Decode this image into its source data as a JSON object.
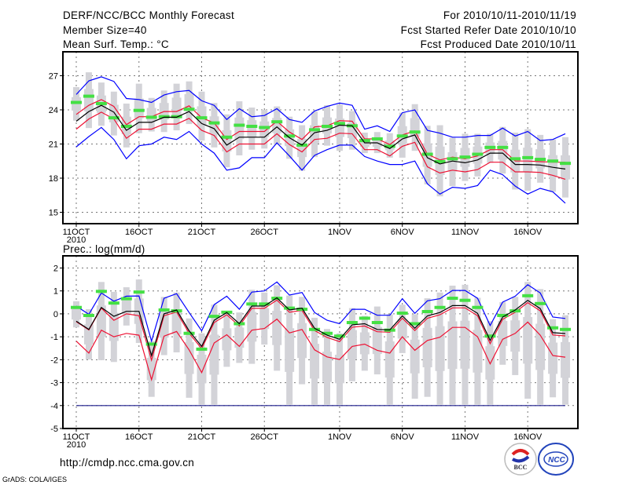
{
  "header": {
    "title": "DERF/NCC/BCC Monthly Forecast",
    "member_size": "Member Size=40",
    "variable": "Mean Surf. Temp.: °C",
    "period": "For 2010/10/11-2010/11/19",
    "start_date": "Fcst Started Refer Date 2010/10/10",
    "produced_date": "Fcst Produced Date 2010/10/11"
  },
  "footer": {
    "url": "http://cmdp.ncc.cma.gov.cn",
    "credit": "GrADS: COLA/IGES",
    "logo_bcc": "BCC",
    "logo_ncc": "NCC"
  },
  "colors": {
    "max_min": "#0000ff",
    "spread": "#ee1133",
    "mean": "#000000",
    "green": "#44e044",
    "gray": "#d3d3d8",
    "minline": "#1a1a8a"
  },
  "chart_data": [
    {
      "type": "line",
      "title": "Mean Surf. Temp.: °C",
      "ylabel": "°C",
      "ylim": [
        14,
        29.1
      ],
      "yticks": [
        15,
        18,
        21,
        24,
        27
      ],
      "xticks": [
        {
          "day": 0,
          "label": "11OCT",
          "sub": "2010"
        },
        {
          "day": 5,
          "label": "16OCT"
        },
        {
          "day": 10,
          "label": "21OCT"
        },
        {
          "day": 15,
          "label": "26OCT"
        },
        {
          "day": 21,
          "label": "1NOV"
        },
        {
          "day": 26,
          "label": "6NOV"
        },
        {
          "day": 31,
          "label": "11NOV"
        },
        {
          "day": 36,
          "label": "16NOV"
        }
      ],
      "grid": true,
      "n_days": 40,
      "series": [
        {
          "name": "range_hi",
          "kind": "bar_hi",
          "values": [
            26.0,
            27.3,
            26.4,
            25.6,
            24.55,
            26.3,
            25.05,
            25.7,
            26.3,
            26.5,
            25.6,
            24.6,
            23.6,
            24.75,
            24.2,
            24.0,
            24.3,
            23.4,
            22.65,
            23.85,
            24.4,
            24.45,
            23.9,
            22.0,
            22.05,
            21.95,
            23.75,
            24.5,
            22.6,
            22.65,
            21.55,
            21.9,
            21.9,
            21.9,
            22.5,
            22.0,
            22.3,
            21.8,
            21.4,
            21.6
          ]
        },
        {
          "name": "range_lo",
          "kind": "bar_lo",
          "values": [
            23.05,
            22.4,
            22.6,
            21.75,
            20.7,
            21.95,
            22.1,
            22.05,
            22.2,
            22.75,
            21.3,
            20.7,
            18.95,
            20.0,
            20.5,
            20.6,
            20.95,
            19.7,
            18.65,
            19.85,
            20.85,
            20.4,
            20.5,
            20.2,
            20.2,
            19.8,
            19.8,
            20.4,
            17.45,
            16.4,
            17.3,
            17.75,
            18.15,
            19.35,
            18.4,
            17.0,
            16.9,
            17.6,
            16.8,
            16.3
          ]
        },
        {
          "name": "max",
          "kind": "blue",
          "values": [
            25.35,
            26.55,
            26.9,
            26.5,
            25.0,
            24.9,
            24.65,
            25.3,
            25.6,
            25.7,
            24.8,
            24.4,
            23.15,
            24.1,
            23.4,
            23.5,
            24.1,
            23.15,
            22.9,
            23.9,
            24.3,
            24.6,
            24.4,
            22.3,
            22.6,
            22.1,
            23.75,
            24.0,
            22.2,
            21.95,
            21.6,
            21.6,
            21.75,
            21.75,
            22.4,
            21.7,
            22.1,
            21.3,
            21.4,
            21.9
          ]
        },
        {
          "name": "min",
          "kind": "blue",
          "values": [
            20.75,
            21.65,
            22.45,
            21.4,
            19.7,
            20.85,
            21.0,
            21.6,
            21.4,
            22.1,
            21.0,
            20.2,
            18.7,
            18.9,
            19.8,
            19.8,
            21.1,
            19.95,
            18.7,
            20.0,
            20.5,
            20.9,
            20.9,
            19.9,
            19.5,
            19.2,
            19.2,
            19.5,
            17.5,
            16.6,
            17.2,
            17.1,
            17.35,
            18.7,
            18.3,
            17.3,
            16.6,
            17.1,
            16.8,
            15.8
          ]
        },
        {
          "name": "upper",
          "kind": "red",
          "values": [
            23.6,
            24.4,
            24.9,
            24.3,
            22.7,
            23.4,
            23.4,
            23.85,
            23.85,
            24.35,
            23.3,
            22.85,
            21.4,
            22.1,
            22.1,
            22.1,
            23.0,
            22.05,
            21.4,
            22.5,
            22.6,
            23.05,
            23.0,
            21.45,
            21.45,
            20.95,
            21.8,
            22.15,
            20.1,
            19.6,
            19.85,
            19.7,
            19.95,
            20.5,
            20.5,
            19.5,
            19.5,
            19.45,
            19.4,
            19.4
          ]
        },
        {
          "name": "lower",
          "kind": "red",
          "values": [
            22.3,
            23.2,
            23.8,
            23.2,
            21.5,
            22.3,
            22.3,
            22.75,
            22.75,
            23.25,
            22.2,
            21.75,
            20.3,
            21.0,
            21.0,
            21.0,
            21.9,
            20.95,
            20.3,
            21.4,
            21.5,
            21.95,
            21.9,
            20.5,
            20.5,
            19.95,
            20.8,
            21.15,
            19.0,
            18.45,
            18.7,
            18.55,
            18.75,
            19.4,
            19.4,
            18.55,
            18.55,
            18.5,
            18.25,
            17.9
          ]
        },
        {
          "name": "mean",
          "kind": "black",
          "values": [
            23.0,
            23.85,
            24.4,
            23.8,
            22.2,
            22.9,
            22.9,
            23.35,
            23.35,
            23.85,
            22.8,
            22.35,
            20.9,
            21.6,
            21.6,
            21.6,
            22.5,
            21.55,
            20.9,
            22.0,
            22.2,
            22.65,
            22.6,
            21.1,
            21.1,
            20.6,
            21.45,
            21.8,
            19.8,
            19.25,
            19.5,
            19.35,
            19.6,
            20.2,
            20.2,
            19.2,
            19.2,
            19.15,
            18.95,
            18.8
          ]
        },
        {
          "name": "green",
          "kind": "green",
          "values": [
            24.65,
            25.2,
            24.55,
            23.3,
            22.55,
            23.95,
            23.35,
            23.4,
            23.4,
            24.05,
            23.3,
            22.85,
            21.6,
            22.65,
            22.55,
            22.45,
            22.95,
            21.7,
            20.9,
            22.25,
            22.55,
            22.8,
            22.6,
            21.3,
            21.45,
            20.8,
            21.7,
            22.05,
            20.1,
            19.45,
            19.7,
            19.85,
            20.1,
            20.7,
            20.7,
            19.7,
            19.8,
            19.65,
            19.5,
            19.3
          ]
        }
      ]
    },
    {
      "type": "line",
      "title": "Prec.: log(mm/d)",
      "ylabel": "log(mm/d)",
      "ylim": [
        -5,
        2.53
      ],
      "yticks": [
        -5,
        -4,
        -3,
        -2,
        -1,
        0,
        1,
        2
      ],
      "xticks": [
        {
          "day": 0,
          "label": "11OCT",
          "sub": "2010"
        },
        {
          "day": 5,
          "label": "16OCT"
        },
        {
          "day": 10,
          "label": "21OCT"
        },
        {
          "day": 15,
          "label": "26OCT"
        },
        {
          "day": 21,
          "label": "1NOV"
        },
        {
          "day": 26,
          "label": "6NOV"
        },
        {
          "day": 31,
          "label": "11NOV"
        },
        {
          "day": 36,
          "label": "16NOV"
        }
      ],
      "grid": true,
      "n_days": 40,
      "series": [
        {
          "name": "range_hi",
          "kind": "bar_hi",
          "values": [
            0.55,
            0.2,
            1.39,
            0.96,
            1.16,
            1.5,
            -1.19,
            0.74,
            0.93,
            -0.2,
            -0.85,
            0.4,
            0.09,
            0.06,
            1.05,
            0.93,
            1.25,
            0.8,
            0.74,
            -0.17,
            -0.66,
            -0.85,
            0.25,
            -0.09,
            0.32,
            -0.02,
            0.4,
            -0.02,
            0.68,
            0.93,
            1.23,
            1.27,
            0.7,
            -0.32,
            0.51,
            0.74,
            1.39,
            1.08,
            -0.23,
            -0.06
          ]
        },
        {
          "name": "range_lo",
          "kind": "bar_lo",
          "values": [
            -0.59,
            -1.99,
            -2.02,
            -2.1,
            -0.51,
            -1.27,
            -3.62,
            -1.8,
            -1.68,
            -3.66,
            -3.96,
            -3.96,
            -2.31,
            -2.14,
            -2.18,
            -1.34,
            -2.48,
            -3.96,
            -3.07,
            -3.96,
            -3.96,
            -3.96,
            -2.94,
            -2.48,
            -2.64,
            -3.96,
            -1.71,
            -3.7,
            -3.62,
            -3.96,
            -3.96,
            -3.96,
            -3.96,
            -3.96,
            -2.22,
            -2.67,
            -3.7,
            -3.96,
            -3.64,
            -3.96
          ]
        },
        {
          "name": "max",
          "kind": "blue",
          "values": [
            0.34,
            -0.02,
            0.91,
            0.55,
            0.77,
            0.78,
            -1.19,
            0.68,
            0.88,
            0.06,
            -0.74,
            0.4,
            0.77,
            0.2,
            0.95,
            1.0,
            1.39,
            0.82,
            0.93,
            0.06,
            -0.28,
            -0.43,
            0.2,
            0.2,
            -0.06,
            -0.06,
            0.66,
            0.02,
            0.57,
            0.66,
            1.02,
            1.02,
            0.68,
            -0.51,
            0.51,
            0.77,
            1.27,
            0.91,
            -0.14,
            -0.2
          ]
        },
        {
          "name": "min",
          "kind": "blue_dark",
          "values": [
            -4,
            -4,
            -4,
            -4,
            -4,
            -4,
            -4,
            -4,
            -4,
            -4,
            -4,
            -4,
            -4,
            -4,
            -4,
            -4,
            -4,
            -4,
            -4,
            -4,
            -4,
            -4,
            -4,
            -4,
            -4,
            -4,
            -4,
            -4,
            -4,
            -4,
            -4,
            -4,
            -4,
            -4,
            -4,
            -4,
            -4,
            -4,
            -4,
            -4
          ]
        },
        {
          "name": "upper",
          "kind": "red",
          "values": [
            -0.34,
            -0.7,
            0.25,
            -0.28,
            0.0,
            -0.08,
            -2.02,
            -0.08,
            0.08,
            -0.84,
            -1.52,
            -0.38,
            -0.04,
            -0.53,
            0.24,
            0.24,
            0.6,
            0.07,
            0.15,
            -0.73,
            -1.03,
            -1.21,
            -0.58,
            -0.53,
            -0.78,
            -0.8,
            -0.19,
            -0.73,
            -0.19,
            -0.04,
            0.26,
            0.26,
            -0.08,
            -1.3,
            -0.24,
            0.07,
            0.49,
            0.13,
            -0.92,
            -0.96
          ]
        },
        {
          "name": "lower",
          "kind": "red",
          "values": [
            -1.19,
            -1.71,
            -0.71,
            -1.0,
            -0.85,
            -0.93,
            -2.87,
            -0.97,
            -0.77,
            -1.57,
            -2.56,
            -1.27,
            -0.91,
            -1.42,
            -0.71,
            -0.64,
            -0.23,
            -0.83,
            -0.68,
            -1.57,
            -1.88,
            -1.99,
            -1.42,
            -1.32,
            -1.59,
            -1.71,
            -1.0,
            -1.59,
            -1.16,
            -1.02,
            -0.59,
            -0.59,
            -1.0,
            -2.18,
            -1.11,
            -0.85,
            -0.36,
            -0.93,
            -1.82,
            -1.89
          ]
        },
        {
          "name": "mean",
          "kind": "black",
          "values": [
            -0.32,
            -0.68,
            0.28,
            -0.11,
            0.11,
            0.11,
            -1.82,
            0.0,
            0.17,
            -0.74,
            -1.42,
            -0.28,
            0.06,
            -0.43,
            0.34,
            0.34,
            0.7,
            0.17,
            0.25,
            -0.63,
            -0.93,
            -1.11,
            -0.48,
            -0.43,
            -0.68,
            -0.7,
            -0.09,
            -0.63,
            -0.09,
            0.06,
            0.36,
            0.36,
            0.02,
            -1.16,
            -0.14,
            0.17,
            0.59,
            0.23,
            -0.82,
            -0.86
          ]
        },
        {
          "name": "green",
          "kind": "green",
          "values": [
            0.28,
            -0.07,
            0.98,
            0.47,
            0.66,
            0.95,
            -1.32,
            0.17,
            0.13,
            -0.85,
            -1.54,
            -0.11,
            0.07,
            -0.43,
            0.43,
            0.43,
            0.68,
            0.25,
            0.2,
            -0.68,
            -0.85,
            -0.97,
            -0.38,
            -0.19,
            -0.38,
            -0.71,
            0.03,
            -0.43,
            0.1,
            0.28,
            0.68,
            0.59,
            0.28,
            -0.97,
            -0.07,
            0.13,
            0.79,
            0.45,
            -0.61,
            -0.68
          ]
        }
      ]
    }
  ]
}
